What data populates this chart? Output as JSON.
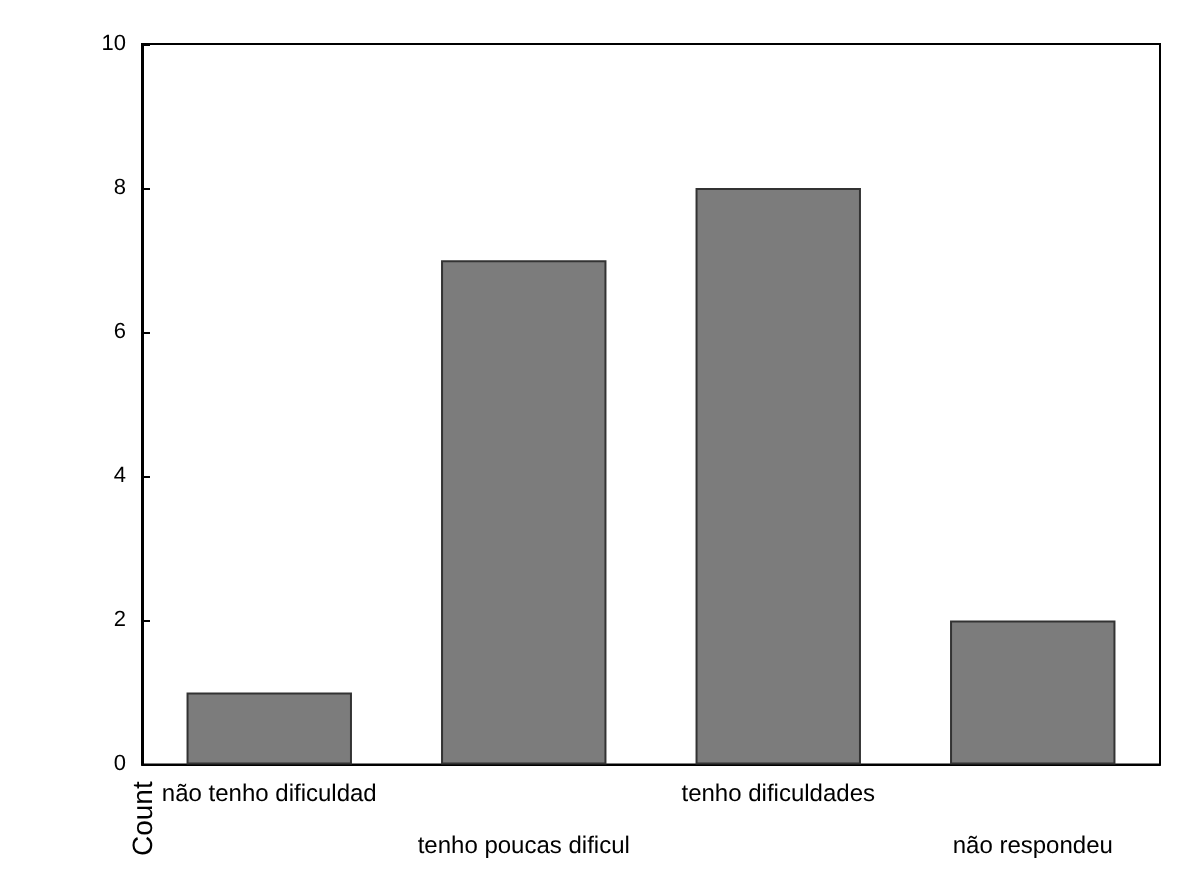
{
  "chart_data": {
    "type": "bar",
    "ylabel": "Count",
    "categories": [
      "não tenho dificuldad",
      "tenho poucas dificul",
      "tenho dificuldades",
      "não respondeu"
    ],
    "values": [
      1,
      7,
      8,
      2
    ],
    "color": "#7c7c7c",
    "ylim": [
      0,
      10
    ],
    "yticks": [
      0,
      2,
      4,
      6,
      8,
      10
    ],
    "grid": false
  }
}
